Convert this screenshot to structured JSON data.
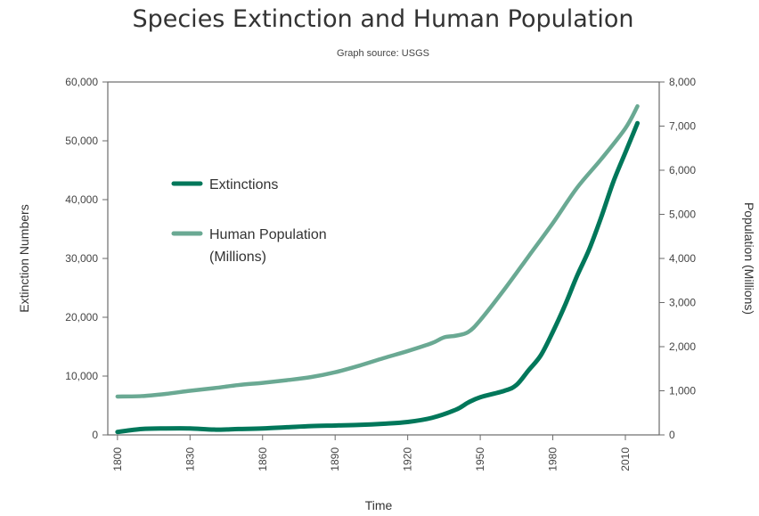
{
  "chart_data": {
    "type": "line",
    "title": "Species Extinction and Human Population",
    "subtitle": "Graph source: USGS",
    "xlabel": "Time",
    "ylabel_left": "Extinction Numbers",
    "ylabel_right": "Population (Millions)",
    "xlim": [
      1796,
      2024
    ],
    "ylim_left": [
      0,
      60000
    ],
    "ylim_right": [
      0,
      8000
    ],
    "x_ticks": [
      "1800",
      "1830",
      "1860",
      "1890",
      "1920",
      "1950",
      "1980",
      "2010"
    ],
    "y_ticks_left": [
      "0",
      "10,000",
      "20,000",
      "30,000",
      "40,000",
      "50,000",
      "60,000"
    ],
    "y_ticks_right": [
      "0",
      "1,000",
      "2,000",
      "3,000",
      "4,000",
      "5,000",
      "6,000",
      "7,000",
      "8,000"
    ],
    "grid": false,
    "legend_position": "upper-left inside plot",
    "legend_labels": [
      "Extinctions",
      "Human Population",
      "(Millions)"
    ],
    "series": [
      {
        "name": "Extinctions",
        "axis": "left",
        "color": "#00775a",
        "x": [
          1800,
          1810,
          1820,
          1830,
          1840,
          1850,
          1860,
          1870,
          1880,
          1890,
          1900,
          1910,
          1920,
          1930,
          1940,
          1945,
          1950,
          1960,
          1965,
          1970,
          1975,
          1980,
          1985,
          1990,
          1995,
          2000,
          2005,
          2010,
          2013,
          2015
        ],
        "values": [
          500,
          1000,
          1100,
          1100,
          900,
          1000,
          1100,
          1300,
          1500,
          1600,
          1700,
          1900,
          2200,
          2900,
          4300,
          5500,
          6400,
          7500,
          8500,
          11000,
          13500,
          17500,
          22000,
          27000,
          31500,
          37000,
          43000,
          48000,
          51000,
          53000
        ]
      },
      {
        "name": "Human Population (Millions)",
        "axis": "right",
        "color": "#6aa993",
        "x": [
          1800,
          1810,
          1820,
          1830,
          1840,
          1850,
          1860,
          1870,
          1880,
          1890,
          1900,
          1910,
          1920,
          1930,
          1935,
          1940,
          1945,
          1950,
          1960,
          1970,
          1980,
          1990,
          2000,
          2010,
          2015
        ],
        "values": [
          870,
          880,
          930,
          1000,
          1060,
          1130,
          1180,
          1240,
          1310,
          1420,
          1570,
          1740,
          1900,
          2080,
          2210,
          2250,
          2330,
          2600,
          3300,
          4050,
          4800,
          5600,
          6250,
          6950,
          7450
        ]
      }
    ]
  }
}
